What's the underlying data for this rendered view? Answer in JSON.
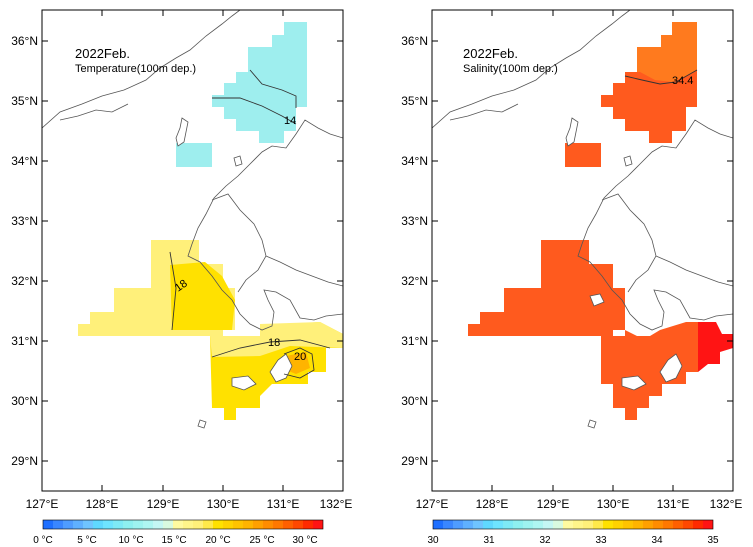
{
  "panels": [
    {
      "id": "temperature",
      "title": "2022Feb.",
      "subtitle": "Temperature(100m dep.)",
      "lat_labels": [
        "36°N",
        "35°N",
        "34°N",
        "33°N",
        "32°N",
        "31°N",
        "30°N",
        "29°N"
      ],
      "lon_labels": [
        "127°E",
        "128°E",
        "129°E",
        "130°E",
        "131°E",
        "132°E"
      ],
      "contour_labels": [
        "14",
        "18",
        "18",
        "20"
      ],
      "colorbar_labels": [
        "0 °C",
        "5 °C",
        "10 °C",
        "15 °C",
        "20 °C",
        "25 °C",
        "30 °C"
      ]
    },
    {
      "id": "salinity",
      "title": "2022Feb.",
      "subtitle": "Salinity(100m dep.)",
      "lat_labels": [
        "36°N",
        "35°N",
        "34°N",
        "33°N",
        "32°N",
        "31°N",
        "30°N",
        "29°N"
      ],
      "lon_labels": [
        "127°E",
        "128°E",
        "129°E",
        "130°E",
        "131°E",
        "132°E"
      ],
      "contour_labels": [
        "34.4"
      ],
      "colorbar_labels": [
        "30",
        "31",
        "32",
        "33",
        "34",
        "35"
      ]
    }
  ],
  "colors": {
    "temp_cold": "#9eeeee",
    "temp_warm": "#fff07a",
    "temp_warmer": "#ffe100",
    "temp_warmest": "#ffb400",
    "sal_main": "#ff5a1e",
    "sal_high": "#ff7a1e",
    "sal_max": "#ff1414"
  }
}
